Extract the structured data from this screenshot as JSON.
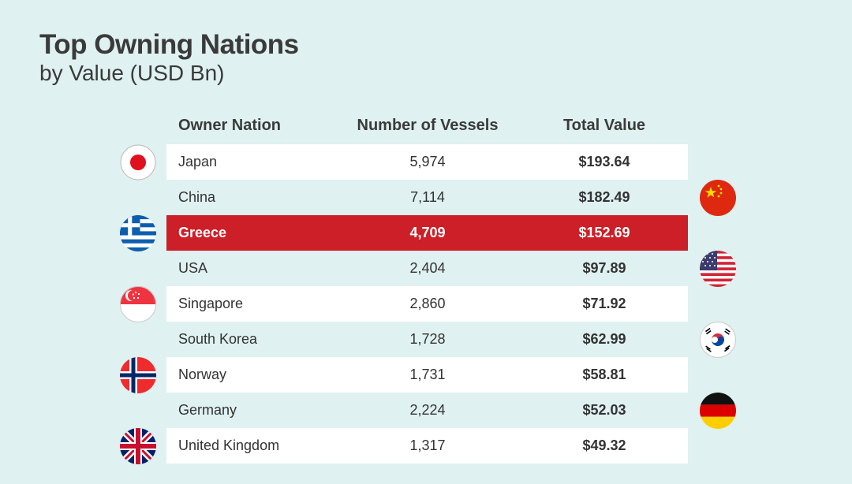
{
  "title": "Top Owning Nations",
  "subtitle": "by Value (USD Bn)",
  "columns": {
    "name": "Owner Nation",
    "vessels": "Number of Vessels",
    "value": "Total Value"
  },
  "colors": {
    "background": "#dff1f0",
    "highlight": "#cc1f27",
    "row": "#ffffff"
  },
  "chart_data": {
    "type": "table",
    "title": "Top Owning Nations",
    "subtitle": "by Value (USD Bn)",
    "columns": [
      "Owner Nation",
      "Number of Vessels",
      "Total Value"
    ],
    "rows": [
      {
        "nation": "Japan",
        "vessels": "5,974",
        "value": "$193.64",
        "flag": "japan-flag"
      },
      {
        "nation": "China",
        "vessels": "7,114",
        "value": "$182.49",
        "flag": "china-flag"
      },
      {
        "nation": "Greece",
        "vessels": "4,709",
        "value": "$152.69",
        "flag": "greece-flag",
        "highlighted": true
      },
      {
        "nation": "USA",
        "vessels": "2,404",
        "value": "$97.89",
        "flag": "usa-flag"
      },
      {
        "nation": "Singapore",
        "vessels": "2,860",
        "value": "$71.92",
        "flag": "singapore-flag"
      },
      {
        "nation": "South Korea",
        "vessels": "1,728",
        "value": "$62.99",
        "flag": "south-korea-flag"
      },
      {
        "nation": "Norway",
        "vessels": "1,731",
        "value": "$58.81",
        "flag": "norway-flag"
      },
      {
        "nation": "Germany",
        "vessels": "2,224",
        "value": "$52.03",
        "flag": "germany-flag"
      },
      {
        "nation": "United Kingdom",
        "vessels": "1,317",
        "value": "$49.32",
        "flag": "uk-flag"
      }
    ]
  }
}
